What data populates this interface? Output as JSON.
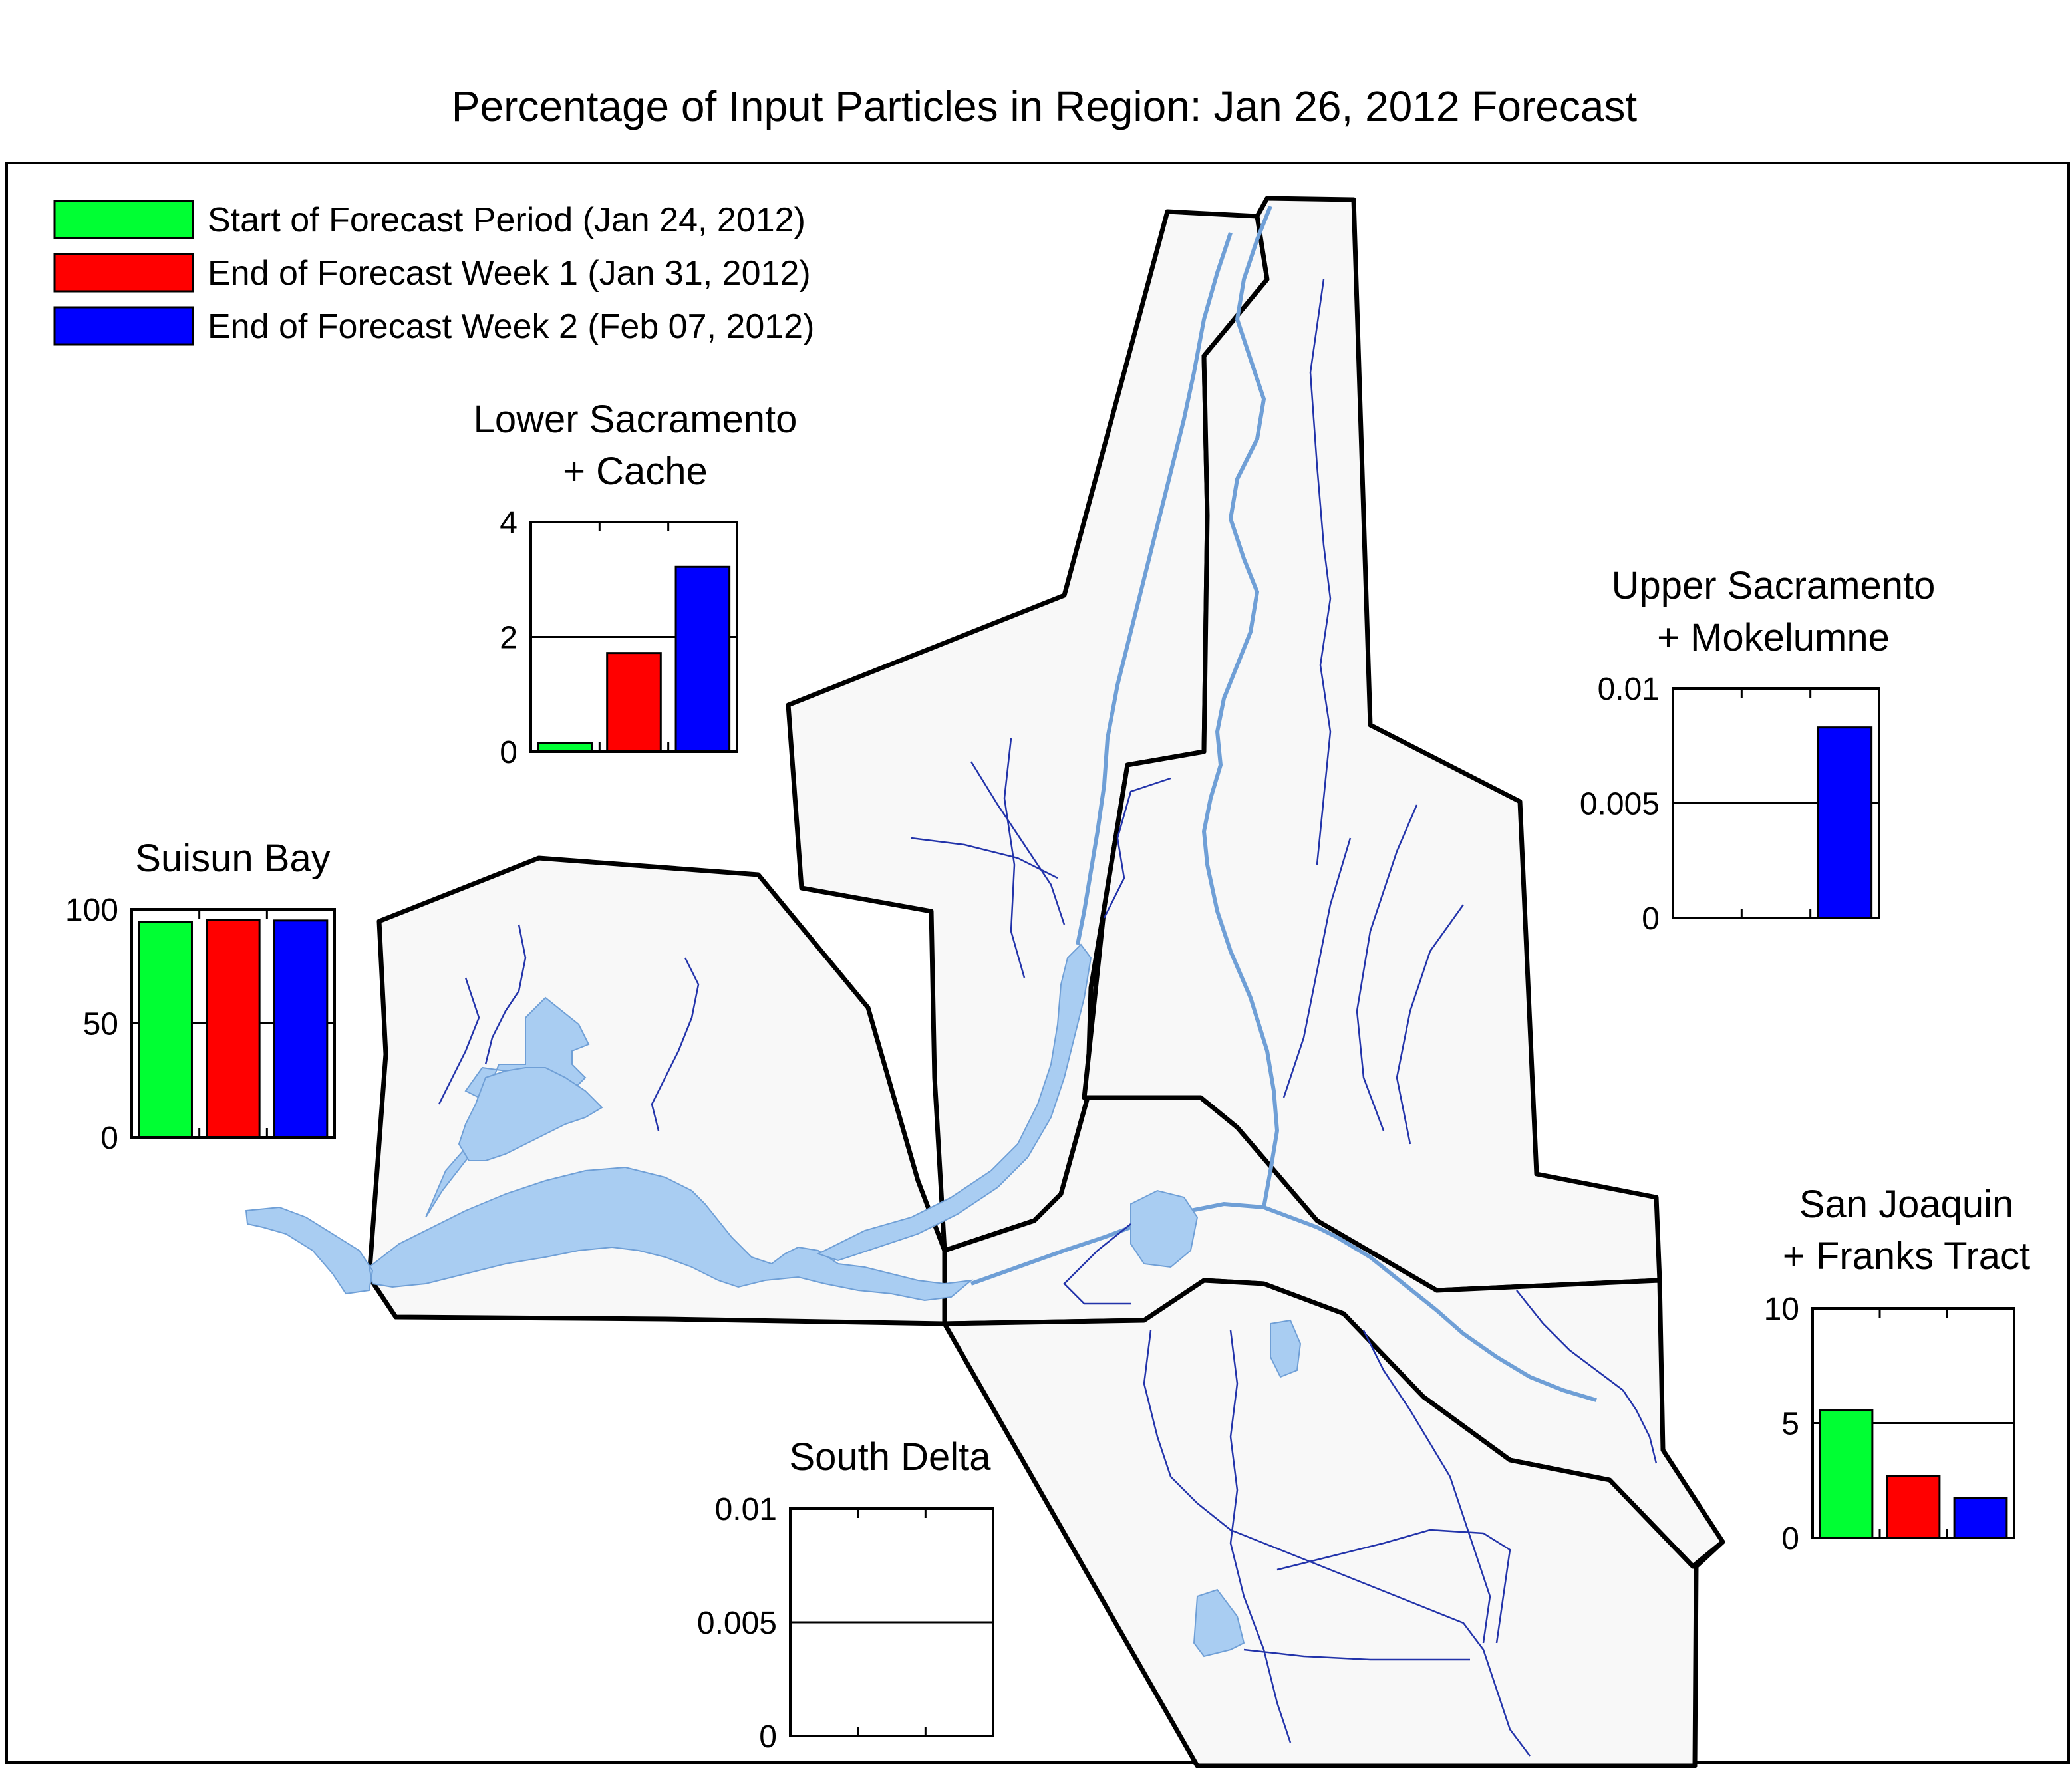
{
  "title": "Percentage of Input Particles in Region: Jan 26, 2012 Forecast",
  "colors": {
    "start": "#00ff33",
    "week1": "#ff0000",
    "week2": "#0000ff",
    "water": "#a9cdf2",
    "region_fill": "#f8f8f8"
  },
  "legend": [
    {
      "label": "Start of Forecast Period (Jan 24, 2012)",
      "color": "#00ff33"
    },
    {
      "label": "End of Forecast Week 1 (Jan 31, 2012)",
      "color": "#ff0000"
    },
    {
      "label": "End of Forecast Week 2 (Feb 07, 2012)",
      "color": "#0000ff"
    }
  ],
  "chart_data": [
    {
      "type": "bar",
      "title_lines": [
        "Lower Sacramento",
        "+ Cache"
      ],
      "ylim": [
        0,
        4
      ],
      "yticks": [
        "0",
        "2",
        "4"
      ],
      "values": [
        0.15,
        1.72,
        3.22
      ]
    },
    {
      "type": "bar",
      "title_lines": [
        "Upper Sacramento",
        "+ Mokelumne"
      ],
      "ylim": [
        0,
        0.01
      ],
      "yticks": [
        "0",
        "0.005",
        "0.01"
      ],
      "values": [
        0,
        0,
        0.0083
      ]
    },
    {
      "type": "bar",
      "title_lines": [
        "Suisun Bay"
      ],
      "ylim": [
        0,
        100
      ],
      "yticks": [
        "0",
        "50",
        "100"
      ],
      "values": [
        94.5,
        95.3,
        95.1
      ]
    },
    {
      "type": "bar",
      "title_lines": [
        "San Joaquin",
        "+ Franks Tract"
      ],
      "ylim": [
        0,
        10
      ],
      "yticks": [
        "0",
        "5",
        "10"
      ],
      "values": [
        5.55,
        2.7,
        1.75
      ]
    },
    {
      "type": "bar",
      "title_lines": [
        "South Delta"
      ],
      "ylim": [
        0,
        0.01
      ],
      "yticks": [
        "0",
        "0.005",
        "0.01"
      ],
      "values": [
        0,
        0,
        0
      ]
    }
  ]
}
